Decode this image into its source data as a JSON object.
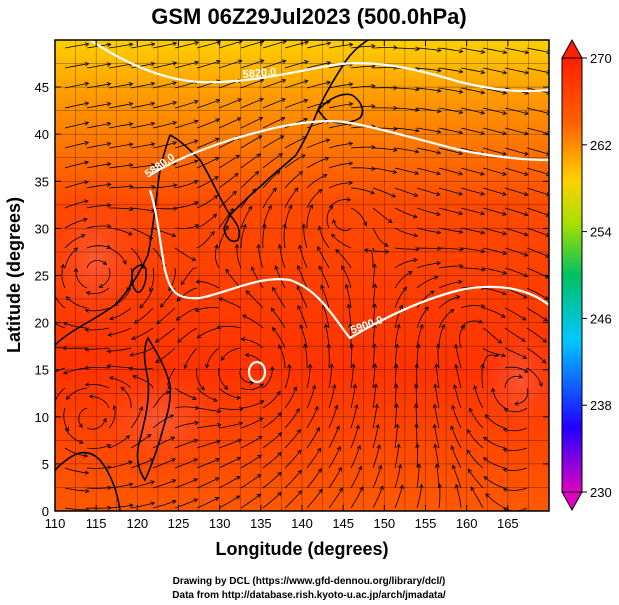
{
  "title": "GSM 06Z29Jul2023 (500.0hPa)",
  "xlabel": "Longitude (degrees)",
  "ylabel": "Latitude  (degrees)",
  "credits": [
    "Drawing by DCL (https://www.gfd-dennou.org/library/dcl/)",
    "Data from http://database.rish.kyoto-u.ac.jp/arch/jmadata/"
  ],
  "map": {
    "lon_range": [
      110,
      170
    ],
    "lat_range": [
      0,
      50
    ],
    "lon_ticks": [
      "110",
      "115",
      "120",
      "125",
      "130",
      "135",
      "140",
      "145",
      "150",
      "155",
      "160",
      "165"
    ],
    "lat_ticks": [
      "0",
      "5",
      "10",
      "15",
      "20",
      "25",
      "30",
      "35",
      "40",
      "45"
    ],
    "contour_labels": [
      "5820.0",
      "5880.0",
      "5900.0"
    ],
    "colors": {
      "warm": "#ff3300",
      "mid": "#ff8800",
      "cool": "#ffd000",
      "contour": "#ffffff",
      "coast": "#000000"
    }
  },
  "colorbar": {
    "ticks": [
      "270",
      "262",
      "254",
      "246",
      "238",
      "230"
    ],
    "range": [
      230,
      270
    ],
    "colors": [
      "#e000c0",
      "#2000ff",
      "#00c8ff",
      "#00c060",
      "#a8e000",
      "#ffd000",
      "#ff6000",
      "#ff2000"
    ]
  }
}
